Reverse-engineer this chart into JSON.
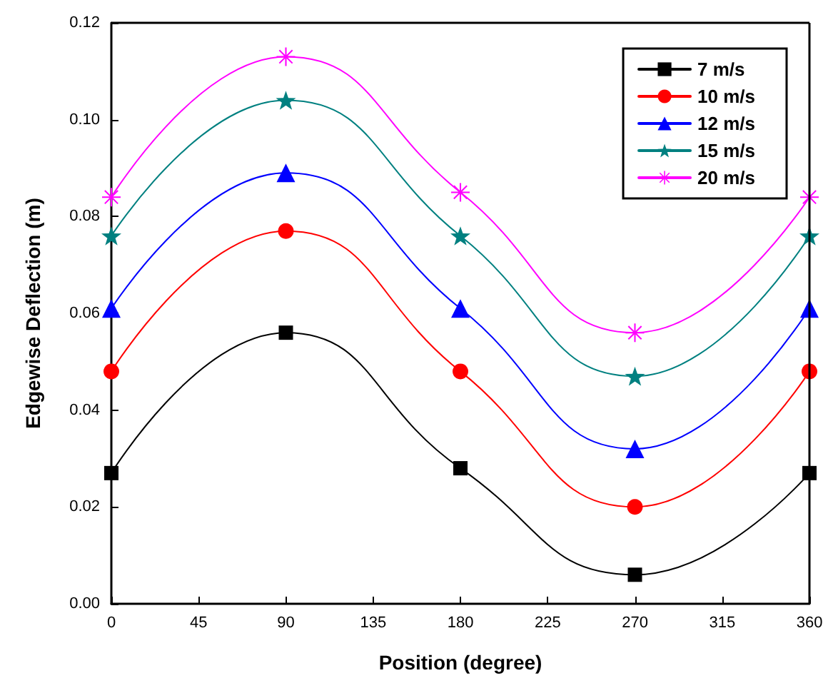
{
  "chart_data": {
    "type": "line",
    "xlabel": "Position (degree)",
    "ylabel": "Edgewise Deflection (m)",
    "x": [
      0,
      90,
      180,
      270,
      360
    ],
    "xlim": [
      0,
      360
    ],
    "xticks": [
      0,
      45,
      90,
      135,
      180,
      225,
      270,
      315,
      360
    ],
    "ylim": [
      0,
      0.12
    ],
    "yticks": [
      {
        "value": 0,
        "label": "0.00"
      },
      {
        "value": 0.02,
        "label": "0.02"
      },
      {
        "value": 0.04,
        "label": "0.04"
      },
      {
        "value": 0.06,
        "label": "0.06"
      },
      {
        "value": 0.08,
        "label": "0.08"
      },
      {
        "value": 0.1,
        "label": "0.10"
      },
      {
        "value": 0.12,
        "label": "0.12"
      }
    ],
    "grid": false,
    "legend": "top right",
    "line_style": "solid",
    "series": [
      {
        "name": "7 m/s",
        "color": "#000000",
        "marker": "square",
        "values": [
          0.027,
          0.056,
          0.028,
          0.006,
          0.027
        ]
      },
      {
        "name": "10 m/s",
        "color": "#ff0000",
        "marker": "circle",
        "values": [
          0.048,
          0.077,
          0.048,
          0.02,
          0.048
        ]
      },
      {
        "name": "12 m/s",
        "color": "#0000ff",
        "marker": "triangle",
        "values": [
          0.061,
          0.089,
          0.061,
          0.032,
          0.061
        ]
      },
      {
        "name": "15 m/s",
        "color": "#008080",
        "marker": "star",
        "values": [
          0.076,
          0.104,
          0.076,
          0.047,
          0.076
        ]
      },
      {
        "name": "20 m/s",
        "color": "#ff00ff",
        "marker": "cross",
        "values": [
          0.084,
          0.113,
          0.085,
          0.056,
          0.084
        ]
      }
    ]
  }
}
